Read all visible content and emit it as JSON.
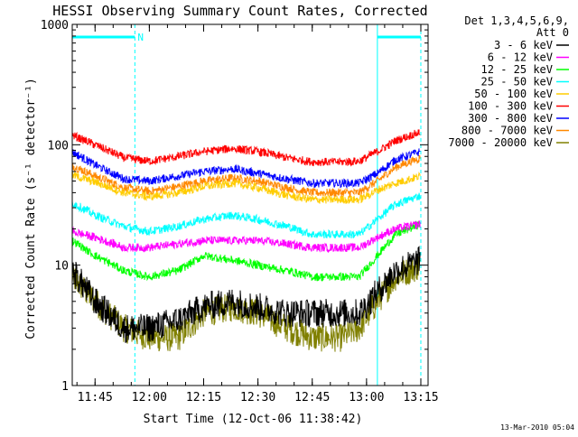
{
  "chart_data": {
    "type": "line",
    "title": "HESSI Observing Summary Count Rates, Corrected",
    "ylabel": "Corrected Count Rate (s⁻¹ detector⁻¹)",
    "xlabel": "Start Time (12-Oct-06 11:38:42)",
    "y_scale": "log",
    "ylim": [
      1,
      1000
    ],
    "xlim": [
      "11:38:42",
      "13:17:00"
    ],
    "y_ticks": [
      "1",
      "10",
      "100",
      "1000"
    ],
    "x_ticks": [
      "11:45",
      "12:00",
      "12:15",
      "12:30",
      "12:45",
      "13:00",
      "13:15"
    ],
    "legend_header": [
      "Det 1,3,4,5,6,9,",
      "Att 0"
    ],
    "legend_position": "right",
    "x": [
      "11:38:42",
      "11:45",
      "11:53",
      "12:00",
      "12:08",
      "12:15",
      "12:23",
      "12:30",
      "12:38",
      "12:45",
      "12:53",
      "12:58",
      "13:03",
      "13:08",
      "13:15"
    ],
    "series": [
      {
        "name": "3 - 6 keV",
        "color": "#000000",
        "values": [
          9,
          5,
          3,
          3,
          3.5,
          4.5,
          5,
          4.5,
          4,
          4,
          4,
          4,
          6,
          9,
          11
        ]
      },
      {
        "name": "6 - 12 keV",
        "color": "#ff00ff",
        "values": [
          19,
          17,
          14,
          14,
          15,
          16,
          16,
          16,
          15,
          14,
          14,
          14,
          17,
          20,
          22
        ]
      },
      {
        "name": "12 - 25 keV",
        "color": "#00ff00",
        "values": [
          16,
          12,
          9,
          8,
          9,
          12,
          11,
          10,
          9,
          8,
          8,
          8,
          12,
          18,
          22
        ]
      },
      {
        "name": "25 - 50 keV",
        "color": "#00ffff",
        "values": [
          33,
          26,
          21,
          19,
          21,
          24,
          26,
          24,
          21,
          18,
          18,
          18,
          24,
          32,
          38
        ]
      },
      {
        "name": "50 - 100 keV",
        "color": "#ffcc00",
        "values": [
          56,
          49,
          40,
          37,
          40,
          45,
          48,
          44,
          38,
          35,
          35,
          35,
          42,
          48,
          55
        ]
      },
      {
        "name": "100 - 300 keV",
        "color": "#ff0000",
        "values": [
          120,
          100,
          78,
          73,
          80,
          88,
          93,
          88,
          78,
          72,
          72,
          73,
          88,
          108,
          128
        ]
      },
      {
        "name": "300 - 800 keV",
        "color": "#0000ff",
        "values": [
          87,
          68,
          52,
          50,
          55,
          60,
          63,
          58,
          52,
          48,
          48,
          48,
          58,
          75,
          88
        ]
      },
      {
        "name": "800 - 7000 keV",
        "color": "#ff8800",
        "values": [
          67,
          55,
          44,
          41,
          45,
          50,
          53,
          50,
          44,
          40,
          40,
          40,
          50,
          65,
          78
        ]
      },
      {
        "name": "7000 - 20000 keV",
        "color": "#808000",
        "values": [
          8,
          5,
          3,
          2.5,
          2.5,
          4,
          4.5,
          4,
          3,
          2.5,
          2.5,
          3,
          5,
          8,
          10
        ]
      }
    ],
    "annotations": {
      "attenuator_marker_label": "N",
      "intervals": [
        [
          "11:38:42",
          "11:56:00"
        ],
        [
          "13:03:00",
          "13:15:00"
        ]
      ]
    },
    "footer_date": "13-Mar-2010 05:04"
  }
}
